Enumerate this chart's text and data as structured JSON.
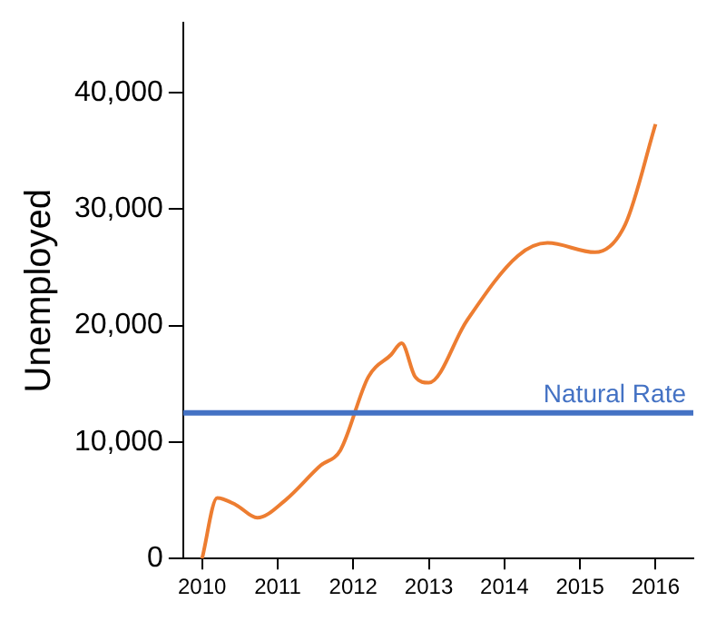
{
  "chart_data": {
    "type": "line",
    "ylabel": "Unemployed",
    "x": [
      2010,
      2010.2,
      2010.45,
      2010.73,
      2011.1,
      2011.57,
      2011.83,
      2012.2,
      2012.5,
      2012.64,
      2012.82,
      2013.0,
      2013.5,
      2014.18,
      2014.57,
      2015.2,
      2015.6,
      2016
    ],
    "series": [
      {
        "color": "#ed7d31",
        "values": [
          0,
          5200,
          4600,
          3500,
          5000,
          8000,
          9300,
          15600,
          17500,
          18500,
          15600,
          15100,
          20400,
          26000,
          27100,
          26300,
          28700,
          37300
        ]
      }
    ],
    "xlim": [
      2009.75,
      2016.5
    ],
    "xticks": [
      2010,
      2011,
      2012,
      2013,
      2014,
      2015,
      2016
    ],
    "ylim": [
      0,
      46000
    ],
    "yticks": [
      0,
      {
        "value": 10000,
        "label": "10,000"
      },
      {
        "value": 20000,
        "label": "20,000"
      },
      {
        "value": 30000,
        "label": "30,000"
      },
      {
        "value": 40000,
        "label": "40,000"
      }
    ],
    "ref_lines": [
      {
        "axis": "y",
        "value": 12500,
        "label": "Natural Rate",
        "color": "#4472c4"
      }
    ],
    "grid": false,
    "legend": false,
    "marker": "none",
    "line_style": "solid"
  }
}
